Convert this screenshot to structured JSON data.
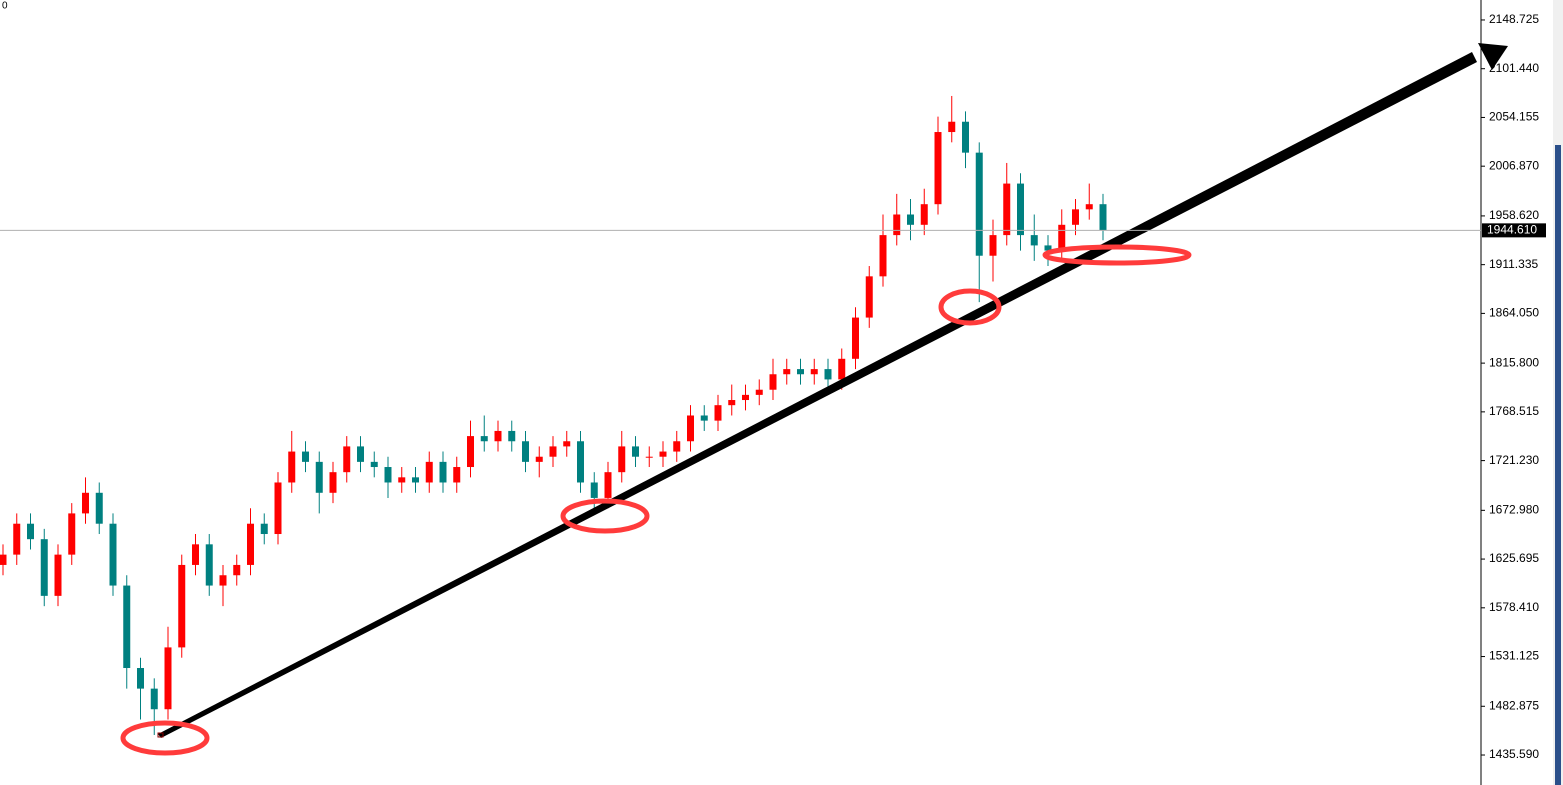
{
  "header_label": "0",
  "chart_data": {
    "type": "candlestick",
    "series": {
      "open": [
        1620,
        1630,
        1660,
        1645,
        1590,
        1630,
        1670,
        1690,
        1660,
        1600,
        1520,
        1500,
        1480,
        1540,
        1620,
        1640,
        1600,
        1610,
        1620,
        1660,
        1650,
        1700,
        1730,
        1720,
        1690,
        1710,
        1735,
        1720,
        1715,
        1700,
        1705,
        1700,
        1720,
        1700,
        1715,
        1745,
        1740,
        1750,
        1740,
        1720,
        1725,
        1735,
        1740,
        1700,
        1685,
        1710,
        1735,
        1725,
        1725,
        1730,
        1740,
        1765,
        1760,
        1775,
        1780,
        1785,
        1790,
        1805,
        1810,
        1805,
        1810,
        1800,
        1820,
        1860,
        1900,
        1940,
        1960,
        1950,
        1970,
        2040,
        2050,
        2020,
        1920,
        1940,
        1990,
        1940,
        1930,
        1925,
        1950,
        1965,
        1970
      ],
      "high": [
        1640,
        1670,
        1670,
        1655,
        1640,
        1680,
        1705,
        1700,
        1670,
        1610,
        1530,
        1510,
        1560,
        1630,
        1650,
        1650,
        1620,
        1630,
        1675,
        1670,
        1710,
        1750,
        1740,
        1730,
        1720,
        1745,
        1745,
        1730,
        1725,
        1715,
        1715,
        1730,
        1730,
        1725,
        1760,
        1765,
        1760,
        1760,
        1750,
        1735,
        1745,
        1750,
        1750,
        1710,
        1720,
        1750,
        1745,
        1735,
        1740,
        1750,
        1775,
        1775,
        1785,
        1795,
        1795,
        1800,
        1820,
        1820,
        1820,
        1820,
        1820,
        1830,
        1870,
        1910,
        1960,
        1980,
        1975,
        1985,
        2055,
        2075,
        2060,
        2030,
        1955,
        2010,
        2000,
        1960,
        1940,
        1965,
        1975,
        1990,
        1980
      ],
      "low": [
        1610,
        1620,
        1635,
        1580,
        1580,
        1620,
        1660,
        1650,
        1590,
        1500,
        1470,
        1455,
        1470,
        1530,
        1610,
        1590,
        1580,
        1600,
        1610,
        1640,
        1640,
        1690,
        1710,
        1670,
        1680,
        1700,
        1710,
        1705,
        1685,
        1690,
        1690,
        1690,
        1690,
        1690,
        1705,
        1730,
        1730,
        1730,
        1710,
        1705,
        1715,
        1725,
        1690,
        1670,
        1675,
        1700,
        1715,
        1715,
        1715,
        1720,
        1730,
        1750,
        1750,
        1765,
        1770,
        1775,
        1780,
        1795,
        1795,
        1795,
        1790,
        1790,
        1810,
        1850,
        1890,
        1930,
        1935,
        1940,
        1960,
        2030,
        2005,
        1875,
        1895,
        1930,
        1925,
        1915,
        1910,
        1915,
        1940,
        1955,
        1935
      ],
      "close": [
        1630,
        1660,
        1645,
        1590,
        1630,
        1670,
        1690,
        1660,
        1600,
        1520,
        1500,
        1480,
        1540,
        1620,
        1640,
        1600,
        1610,
        1620,
        1660,
        1650,
        1700,
        1730,
        1720,
        1690,
        1710,
        1735,
        1720,
        1715,
        1700,
        1705,
        1700,
        1720,
        1700,
        1715,
        1745,
        1740,
        1750,
        1740,
        1720,
        1725,
        1735,
        1740,
        1700,
        1685,
        1710,
        1735,
        1725,
        1725,
        1730,
        1740,
        1765,
        1760,
        1775,
        1780,
        1785,
        1790,
        1805,
        1810,
        1805,
        1810,
        1800,
        1820,
        1860,
        1900,
        1940,
        1960,
        1950,
        1970,
        2040,
        2050,
        2020,
        1920,
        1940,
        1990,
        1940,
        1930,
        1925,
        1950,
        1965,
        1970,
        1944.61
      ]
    },
    "up_color": "#ff0000",
    "down_color": "#008080",
    "ylim": [
      1406.5,
      2168.1
    ],
    "yticks": [
      2148.725,
      {
        "value": 2101.44,
        "label": "2101.440"
      },
      2054.155,
      {
        "value": 2006.87,
        "label": "2006.870"
      },
      {
        "value": 1958.62,
        "label": "1958.620"
      },
      1911.335,
      {
        "value": 1864.05,
        "label": "1864.050"
      },
      {
        "value": 1815.8,
        "label": "1815.800"
      },
      1768.515,
      {
        "value": 1721.23,
        "label": "1721.230"
      },
      {
        "value": 1672.98,
        "label": "1672.980"
      },
      1625.695,
      {
        "value": 1578.41,
        "label": "1578.410"
      },
      1531.125,
      1482.875,
      {
        "value": 1435.59,
        "label": "1435.590"
      }
    ],
    "current_price": {
      "value": 1944.61,
      "label": "1944.610"
    }
  }
}
